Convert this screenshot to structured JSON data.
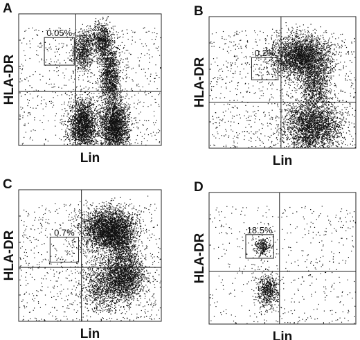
{
  "chart_data": [
    {
      "type": "scatter",
      "panel": "A",
      "xlabel": "Lin",
      "ylabel": "HLA-DR",
      "gate_percent": "0.05%",
      "clusters": [
        {
          "cx": 0.45,
          "cy": 0.72,
          "sx": 0.035,
          "sy": 0.08,
          "n": 700
        },
        {
          "cx": 0.58,
          "cy": 0.8,
          "sx": 0.04,
          "sy": 0.07,
          "n": 750
        },
        {
          "cx": 0.45,
          "cy": 0.15,
          "sx": 0.05,
          "sy": 0.1,
          "n": 2100
        },
        {
          "cx": 0.67,
          "cy": 0.14,
          "sx": 0.05,
          "sy": 0.1,
          "n": 2300
        },
        {
          "cx": 0.64,
          "cy": 0.53,
          "sx": 0.035,
          "sy": 0.12,
          "n": 1300
        }
      ],
      "background_points": 700,
      "gate": {
        "x": [
          0.18,
          0.39
        ],
        "y": [
          0.61,
          0.82
        ]
      },
      "quadrant": {
        "x": 0.4,
        "y": 0.41
      }
    },
    {
      "type": "scatter",
      "panel": "B",
      "xlabel": "Lin",
      "ylabel": "HLA-DR",
      "gate_percent": "0.2%",
      "clusters": [
        {
          "cx": 0.62,
          "cy": 0.7,
          "sx": 0.1,
          "sy": 0.08,
          "n": 2800
        },
        {
          "cx": 0.72,
          "cy": 0.5,
          "sx": 0.05,
          "sy": 0.1,
          "n": 900
        },
        {
          "cx": 0.7,
          "cy": 0.17,
          "sx": 0.1,
          "sy": 0.1,
          "n": 2600
        }
      ],
      "background_points": 900,
      "gate": {
        "x": [
          0.29,
          0.47
        ],
        "y": [
          0.52,
          0.69
        ]
      },
      "quadrant": {
        "x": 0.49,
        "y": 0.35
      }
    },
    {
      "type": "scatter",
      "panel": "C",
      "xlabel": "Lin",
      "ylabel": "HLA-DR",
      "gate_percent": "0.7%",
      "clusters": [
        {
          "cx": 0.62,
          "cy": 0.7,
          "sx": 0.09,
          "sy": 0.08,
          "n": 2900
        },
        {
          "cx": 0.72,
          "cy": 0.58,
          "sx": 0.05,
          "sy": 0.12,
          "n": 1000
        },
        {
          "cx": 0.74,
          "cy": 0.33,
          "sx": 0.07,
          "sy": 0.09,
          "n": 1800
        },
        {
          "cx": 0.58,
          "cy": 0.28,
          "sx": 0.08,
          "sy": 0.1,
          "n": 900
        }
      ],
      "background_points": 800,
      "gate": {
        "x": [
          0.22,
          0.42
        ],
        "y": [
          0.45,
          0.64
        ]
      },
      "quadrant": {
        "x": 0.44,
        "y": 0.41
      }
    },
    {
      "type": "scatter",
      "panel": "D",
      "xlabel": "Lin",
      "ylabel": "HLA-DR",
      "gate_percent": "18.5%",
      "clusters": [
        {
          "cx": 0.36,
          "cy": 0.59,
          "sx": 0.03,
          "sy": 0.03,
          "n": 260
        },
        {
          "cx": 0.4,
          "cy": 0.26,
          "sx": 0.035,
          "sy": 0.06,
          "n": 600
        }
      ],
      "background_points": 500,
      "gate": {
        "x": [
          0.25,
          0.44
        ],
        "y": [
          0.5,
          0.68
        ]
      },
      "quadrant": {
        "x": 0.48,
        "y": 0.4
      }
    }
  ]
}
